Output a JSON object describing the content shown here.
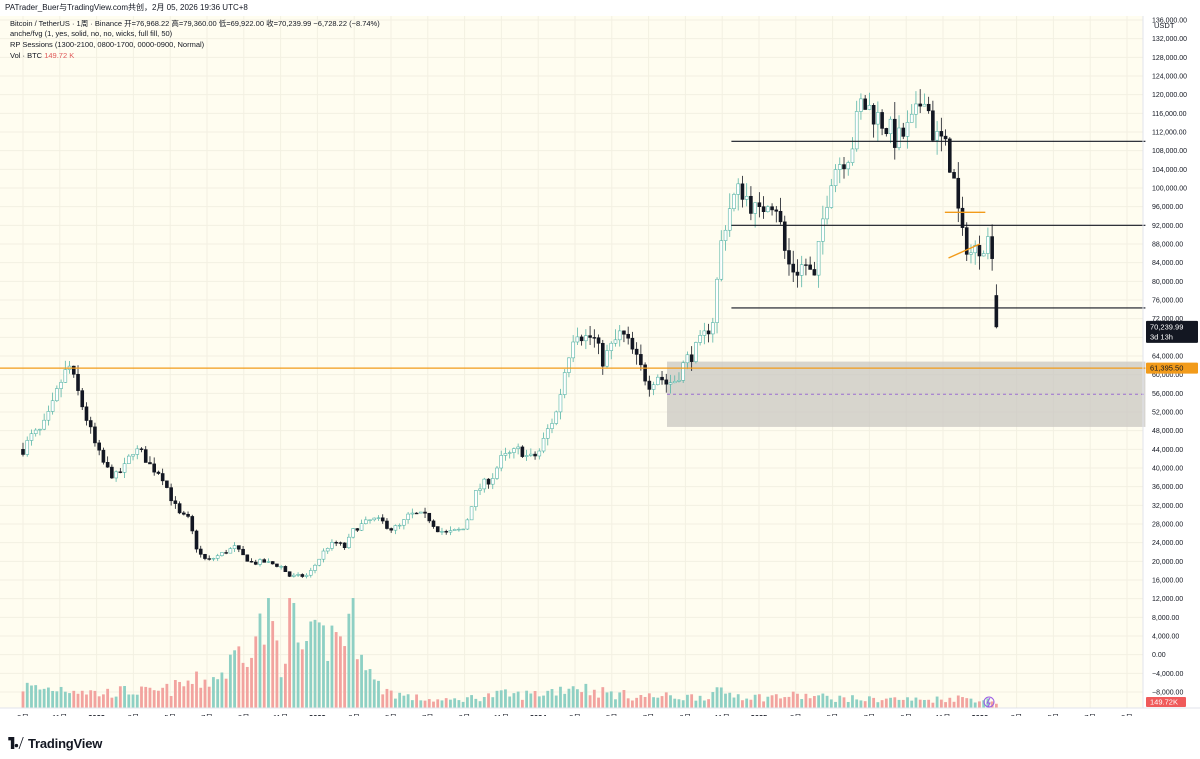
{
  "header": {
    "watermark": "PATrader_Buer与TradingView.com共创，2月 05, 2026 19:36 UTC+8"
  },
  "legend": {
    "symbol": "Bitcoin / TetherUS · 1周 · Binance",
    "ohlc": "开=76,968.22  高=79,360.00  低=69,922.00  收=70,239.99  −6,728.22 (−8.74%)",
    "fvg": "anche/fvg (1, yes, solid, no, no, wicks, full fill, 50)",
    "sessions": "RP Sessions (1300-2100, 0800-1700, 0000-0900, Normal)",
    "vol_label": "Vol · BTC",
    "vol_value": "149.72 K"
  },
  "footer": {
    "brand": "TradingView"
  },
  "chart_data": {
    "type": "candlestick",
    "currency": "USDT",
    "interval": "1W",
    "ylim": [
      -8000,
      136000
    ],
    "y_ticks": [
      "−8,000.00",
      "−4,000.00",
      "0.00",
      "4,000.00",
      "8,000.00",
      "12,000.00",
      "16,000.00",
      "20,000.00",
      "24,000.00",
      "28,000.00",
      "32,000.00",
      "36,000.00",
      "40,000.00",
      "44,000.00",
      "48,000.00",
      "52,000.00",
      "56,000.00",
      "60,000.00",
      "64,000.00",
      "68,000.00",
      "72,000.00",
      "76,000.00",
      "80,000.00",
      "84,000.00",
      "88,000.00",
      "92,000.00",
      "96,000.00",
      "100,000.00",
      "104,000.00",
      "108,000.00",
      "112,000.00",
      "116,000.00",
      "120,000.00",
      "124,000.00",
      "128,000.00",
      "132,000.00",
      "136,000.00"
    ],
    "x_ticks": [
      {
        "label": "9月",
        "t": 0.0,
        "bold": false
      },
      {
        "label": "11月",
        "t": 2.0,
        "bold": false
      },
      {
        "label": "2022",
        "t": 4.0,
        "bold": true
      },
      {
        "label": "3月",
        "t": 6.0,
        "bold": false
      },
      {
        "label": "5月",
        "t": 8.0,
        "bold": false
      },
      {
        "label": "7月",
        "t": 10.0,
        "bold": false
      },
      {
        "label": "9月",
        "t": 12.0,
        "bold": false
      },
      {
        "label": "11月",
        "t": 14.0,
        "bold": false
      },
      {
        "label": "2023",
        "t": 16.0,
        "bold": true
      },
      {
        "label": "3月",
        "t": 18.0,
        "bold": false
      },
      {
        "label": "5月",
        "t": 20.0,
        "bold": false
      },
      {
        "label": "7月",
        "t": 22.0,
        "bold": false
      },
      {
        "label": "9月",
        "t": 24.0,
        "bold": false
      },
      {
        "label": "11月",
        "t": 26.0,
        "bold": false
      },
      {
        "label": "2024",
        "t": 28.0,
        "bold": true
      },
      {
        "label": "3月",
        "t": 30.0,
        "bold": false
      },
      {
        "label": "5月",
        "t": 32.0,
        "bold": false
      },
      {
        "label": "7月",
        "t": 34.0,
        "bold": false
      },
      {
        "label": "9月",
        "t": 36.0,
        "bold": false
      },
      {
        "label": "11月",
        "t": 38.0,
        "bold": false
      },
      {
        "label": "2025",
        "t": 40.0,
        "bold": true
      },
      {
        "label": "3月",
        "t": 42.0,
        "bold": false
      },
      {
        "label": "5月",
        "t": 44.0,
        "bold": false
      },
      {
        "label": "7月",
        "t": 46.0,
        "bold": false
      },
      {
        "label": "9月",
        "t": 48.0,
        "bold": false
      },
      {
        "label": "11月",
        "t": 50.0,
        "bold": false
      },
      {
        "label": "2026",
        "t": 52.0,
        "bold": true
      },
      {
        "label": "3月",
        "t": 54.0,
        "bold": false
      },
      {
        "label": "5月",
        "t": 56.0,
        "bold": false
      },
      {
        "label": "7月",
        "t": 58.0,
        "bold": false
      },
      {
        "label": "9月",
        "t": 60.0,
        "bold": false
      }
    ],
    "t_last": 53.1,
    "price_path": [
      [
        0,
        44000
      ],
      [
        0.5,
        47000
      ],
      [
        1,
        48000
      ],
      [
        1.5,
        52000
      ],
      [
        2,
        58000
      ],
      [
        2.5,
        62000
      ],
      [
        3,
        56000
      ],
      [
        3.5,
        50000
      ],
      [
        4,
        44000
      ],
      [
        4.5,
        40000
      ],
      [
        5,
        38000
      ],
      [
        5.5,
        40000
      ],
      [
        6,
        44000
      ],
      [
        6.5,
        43000
      ],
      [
        7,
        40000
      ],
      [
        7.5,
        39000
      ],
      [
        8,
        34000
      ],
      [
        8.5,
        30000
      ],
      [
        9,
        29000
      ],
      [
        9.5,
        22000
      ],
      [
        10,
        20000
      ],
      [
        10.5,
        21000
      ],
      [
        11,
        22000
      ],
      [
        11.5,
        23000
      ],
      [
        12,
        21000
      ],
      [
        12.5,
        19500
      ],
      [
        13,
        20000
      ],
      [
        13.5,
        19500
      ],
      [
        14,
        19000
      ],
      [
        14.5,
        16800
      ],
      [
        15,
        16800
      ],
      [
        15.5,
        17000
      ],
      [
        16,
        20000
      ],
      [
        16.5,
        23000
      ],
      [
        17,
        24000
      ],
      [
        17.5,
        23000
      ],
      [
        18,
        27000
      ],
      [
        18.5,
        28000
      ],
      [
        19,
        29000
      ],
      [
        19.5,
        28500
      ],
      [
        20,
        27000
      ],
      [
        20.5,
        27500
      ],
      [
        21,
        30000
      ],
      [
        21.5,
        30000
      ],
      [
        22,
        29500
      ],
      [
        22.5,
        27000
      ],
      [
        23,
        26000
      ],
      [
        23.5,
        26500
      ],
      [
        24,
        27000
      ],
      [
        24.5,
        34000
      ],
      [
        25,
        36500
      ],
      [
        25.5,
        38000
      ],
      [
        26,
        42000
      ],
      [
        26.5,
        43000
      ],
      [
        27,
        44000
      ],
      [
        27.5,
        42000
      ],
      [
        28,
        43000
      ],
      [
        28.5,
        48000
      ],
      [
        29,
        52000
      ],
      [
        29.5,
        62000
      ],
      [
        30,
        70000
      ],
      [
        30.5,
        68000
      ],
      [
        31,
        68000
      ],
      [
        31.5,
        63000
      ],
      [
        32,
        66000
      ],
      [
        32.5,
        69000
      ],
      [
        33,
        66000
      ],
      [
        33.5,
        62000
      ],
      [
        34,
        58000
      ],
      [
        34.5,
        60000
      ],
      [
        35,
        58000
      ],
      [
        35.5,
        59000
      ],
      [
        36,
        63000
      ],
      [
        36.5,
        65000
      ],
      [
        37,
        68000
      ],
      [
        37.5,
        72000
      ],
      [
        38,
        90000
      ],
      [
        38.5,
        97000
      ],
      [
        39,
        100000
      ],
      [
        39.5,
        97000
      ],
      [
        40,
        94000
      ],
      [
        40.5,
        98000
      ],
      [
        41,
        96000
      ],
      [
        41.5,
        84000
      ],
      [
        42,
        82000
      ],
      [
        42.5,
        84000
      ],
      [
        43,
        80000
      ],
      [
        43.5,
        94000
      ],
      [
        44,
        104000
      ],
      [
        44.5,
        106000
      ],
      [
        45,
        108000
      ],
      [
        45.5,
        118000
      ],
      [
        46,
        117000
      ],
      [
        46.5,
        115000
      ],
      [
        47,
        113000
      ],
      [
        47.5,
        110000
      ],
      [
        48,
        112000
      ],
      [
        48.5,
        115000
      ],
      [
        49,
        121000
      ],
      [
        49.5,
        111000
      ],
      [
        50,
        110000
      ],
      [
        50.5,
        104000
      ],
      [
        51,
        90000
      ],
      [
        51.5,
        86000
      ],
      [
        52,
        87500
      ],
      [
        52.5,
        89000
      ],
      [
        52.9,
        84000
      ],
      [
        53.1,
        70240
      ]
    ],
    "volume_path": [
      [
        0,
        3000
      ],
      [
        1,
        2600
      ],
      [
        2,
        2800
      ],
      [
        3,
        2700
      ],
      [
        4,
        2000
      ],
      [
        5,
        2200
      ],
      [
        6,
        2400
      ],
      [
        7,
        2100
      ],
      [
        8,
        2600
      ],
      [
        9,
        3500
      ],
      [
        10,
        3800
      ],
      [
        11,
        5000
      ],
      [
        12,
        9000
      ],
      [
        13,
        11000
      ],
      [
        13.5,
        12000
      ],
      [
        14,
        6000
      ],
      [
        14.5,
        14000
      ],
      [
        15,
        8000
      ],
      [
        16,
        9000
      ],
      [
        17,
        10000
      ],
      [
        18,
        12000
      ],
      [
        18.5,
        9000
      ],
      [
        19,
        3500
      ],
      [
        20,
        2200
      ],
      [
        21,
        1500
      ],
      [
        22,
        1200
      ],
      [
        23,
        1000
      ],
      [
        24,
        1300
      ],
      [
        25,
        1600
      ],
      [
        26,
        1900
      ],
      [
        27,
        1800
      ],
      [
        28,
        2000
      ],
      [
        29,
        2500
      ],
      [
        30,
        3200
      ],
      [
        31,
        2400
      ],
      [
        32,
        2000
      ],
      [
        33,
        1700
      ],
      [
        34,
        1600
      ],
      [
        35,
        1600
      ],
      [
        36,
        1500
      ],
      [
        37,
        1700
      ],
      [
        38,
        2200
      ],
      [
        39,
        1800
      ],
      [
        40,
        1500
      ],
      [
        41,
        1600
      ],
      [
        42,
        1700
      ],
      [
        43,
        1600
      ],
      [
        44,
        1400
      ],
      [
        45,
        1300
      ],
      [
        46,
        1200
      ],
      [
        47,
        1300
      ],
      [
        48,
        1200
      ],
      [
        49,
        1100
      ],
      [
        50,
        1300
      ],
      [
        51,
        1400
      ],
      [
        52,
        1200
      ],
      [
        53.1,
        800
      ]
    ],
    "hlines": [
      {
        "name": "h-line-110k",
        "y": 110000,
        "t0": 38.5,
        "t1": 61.0,
        "color": "#131722"
      },
      {
        "name": "h-line-92k",
        "y": 92000,
        "t0": 38.5,
        "t1": 61.0,
        "color": "#131722"
      },
      {
        "name": "h-line-74k",
        "y": 74300,
        "t0": 38.5,
        "t1": 61.0,
        "color": "#131722"
      },
      {
        "name": "h-line-orange",
        "y": 61395.5,
        "t0": -2,
        "t1": 61.0,
        "color": "#f29b1a"
      }
    ],
    "fvg_box": {
      "t0": 35.0,
      "t1": 61.0,
      "y_top": 62800,
      "y_bottom": 48800,
      "mid": 55800
    },
    "triangle": {
      "top": [
        [
          50.1,
          94800
        ],
        [
          52.3,
          94800
        ]
      ],
      "bottom": [
        [
          50.3,
          85000
        ],
        [
          52.0,
          88000
        ]
      ]
    },
    "price_tags": [
      {
        "name": "last-price",
        "text": "70,239.99",
        "sub": "3d 13h",
        "y": 70240
      },
      {
        "name": "orange-level",
        "text": "61,395.50",
        "y": 61395.5
      }
    ],
    "volume_tag": "149.72K",
    "colors": {
      "up": "#58b5a8",
      "down": "#131722",
      "vol_up": "#8ed0c4",
      "vol_down": "#f2a39f",
      "bg": "#fffdf0",
      "grid": "#f3f0e2",
      "orange": "#f29b1a"
    }
  }
}
